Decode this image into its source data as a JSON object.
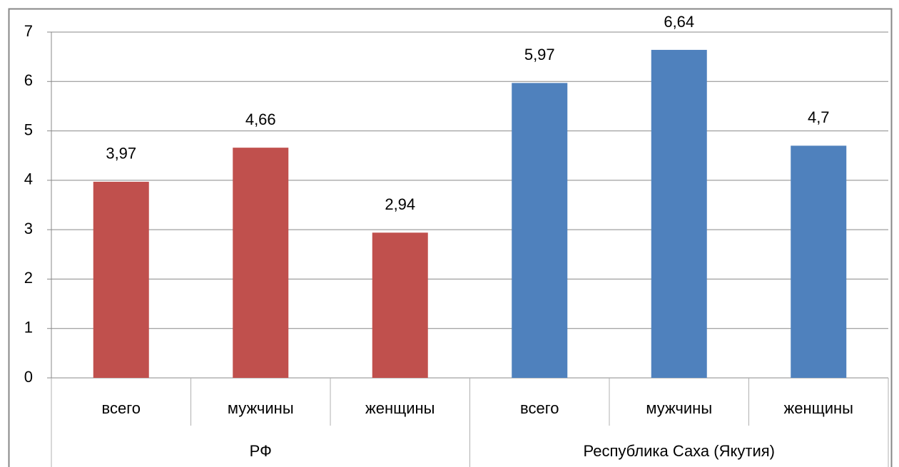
{
  "chart_data": {
    "type": "bar",
    "series": [
      {
        "name": "РФ",
        "color": "#c0504d",
        "categories": [
          "всего",
          "мужчины",
          "женщины"
        ],
        "values": [
          3.97,
          4.66,
          2.94
        ],
        "value_labels": [
          "3,97",
          "4,66",
          "2,94"
        ]
      },
      {
        "name": "Республика Саха (Якутия)",
        "color": "#4f81bd",
        "categories": [
          "всего",
          "мужчины",
          "женщины"
        ],
        "values": [
          5.97,
          6.64,
          4.7
        ],
        "value_labels": [
          "5,97",
          "6,64",
          "4,7"
        ]
      }
    ],
    "ylim": [
      0,
      7
    ],
    "yticks": [
      0,
      1,
      2,
      3,
      4,
      5,
      6,
      7
    ],
    "grid": true
  }
}
